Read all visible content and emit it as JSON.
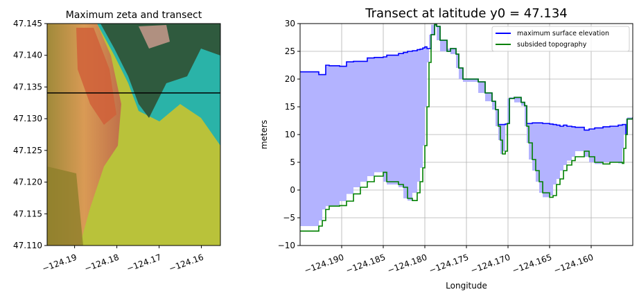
{
  "chart_data": [
    {
      "type": "heatmap",
      "title": "Maximum zeta and transect",
      "xlim": [
        -124.1965,
        -124.1555
      ],
      "ylim": [
        47.11,
        47.145
      ],
      "xticks": [
        "−124.19",
        "−124.18",
        "−124.17",
        "−124.16"
      ],
      "xtick_values": [
        -124.19,
        -124.18,
        -124.17,
        -124.16
      ],
      "yticks": [
        "47.110",
        "47.115",
        "47.120",
        "47.125",
        "47.130",
        "47.135",
        "47.140",
        "47.145"
      ],
      "ytick_values": [
        47.11,
        47.115,
        47.12,
        47.125,
        47.13,
        47.135,
        47.14,
        47.145
      ],
      "transect_latitude": 47.134,
      "colors": {
        "transect": "#000000",
        "ocean_inundation": "#e07a3a",
        "land": "#2f5a3e",
        "shallow": "#b9c93a",
        "teal": "#2ab3a8"
      }
    },
    {
      "type": "line",
      "title": "Transect at latitude y0 = 47.134",
      "xlabel": "Longitude",
      "ylabel": "meters",
      "xlim": [
        -124.195,
        -124.155
      ],
      "ylim": [
        -10,
        30
      ],
      "grid": true,
      "legend": "top-right",
      "xticks": [
        "−124.190",
        "−124.185",
        "−124.180",
        "−124.175",
        "−124.170",
        "−124.165",
        "−124.160"
      ],
      "xtick_values": [
        -124.19,
        -124.185,
        -124.18,
        -124.175,
        -124.17,
        -124.165,
        -124.16
      ],
      "yticks": [
        "−10",
        "−5",
        "0",
        "5",
        "10",
        "15",
        "20",
        "25",
        "30"
      ],
      "ytick_values": [
        -10,
        -5,
        0,
        5,
        10,
        15,
        20,
        25,
        30
      ],
      "fill_color": "#b3b3ff",
      "x": [
        -124.195,
        -124.19275,
        -124.19233,
        -124.19192,
        -124.1915,
        -124.19025,
        -124.18942,
        -124.18858,
        -124.18775,
        -124.18692,
        -124.18608,
        -124.185,
        -124.18458,
        -124.18317,
        -124.18258,
        -124.18208,
        -124.1815,
        -124.18092,
        -124.18058,
        -124.18025,
        -124.18,
        -124.17975,
        -124.1795,
        -124.17925,
        -124.17883,
        -124.17858,
        -124.17817,
        -124.17733,
        -124.17692,
        -124.17625,
        -124.17592,
        -124.17542,
        -124.17358,
        -124.17275,
        -124.17192,
        -124.1715,
        -124.17117,
        -124.17092,
        -124.17067,
        -124.17033,
        -124.17008,
        -124.16983,
        -124.16925,
        -124.16842,
        -124.168,
        -124.16775,
        -124.1675,
        -124.16708,
        -124.16667,
        -124.16625,
        -124.16583,
        -124.165,
        -124.16458,
        -124.16417,
        -124.16375,
        -124.16333,
        -124.16292,
        -124.16233,
        -124.16192,
        -124.16083,
        -124.16025,
        -124.15958,
        -124.15858,
        -124.15775,
        -124.15675,
        -124.15625,
        -124.15608,
        -124.15583,
        -124.15567,
        -124.155
      ],
      "series": [
        {
          "name": "maximum surface elevation",
          "color": "#0000ff",
          "values": [
            21.3,
            20.8,
            20.8,
            22.5,
            22.4,
            22.3,
            23.1,
            23.2,
            23.2,
            23.8,
            23.9,
            24.0,
            24.3,
            24.6,
            24.8,
            25.0,
            25.1,
            25.3,
            25.4,
            25.6,
            25.8,
            25.5,
            25.5,
            28.0,
            29.8,
            29.5,
            27.0,
            25.0,
            25.5,
            24.5,
            22.0,
            20.0,
            19.5,
            17.5,
            16.0,
            14.5,
            11.8,
            11.8,
            11.8,
            11.9,
            12.0,
            16.5,
            16.7,
            15.8,
            15.2,
            12.0,
            12.0,
            12.1,
            12.1,
            12.1,
            12.0,
            11.9,
            11.8,
            11.7,
            11.5,
            11.7,
            11.5,
            11.4,
            11.3,
            10.8,
            11.0,
            11.2,
            11.4,
            11.5,
            11.7,
            11.8,
            11.8,
            10.0,
            12.8,
            13.1
          ]
        },
        {
          "name": "subsided topography",
          "color": "#008000",
          "values": [
            -7.4,
            -6.5,
            -5.5,
            -3.5,
            -2.9,
            -2.8,
            -2.0,
            -0.7,
            0.5,
            1.5,
            2.5,
            3.2,
            1.5,
            1.0,
            0.5,
            -1.5,
            -1.9,
            -0.5,
            1.5,
            4.0,
            8.0,
            15.0,
            23.0,
            28.0,
            29.8,
            29.5,
            27.0,
            25.0,
            25.5,
            24.5,
            22.0,
            20.0,
            19.5,
            17.5,
            16.0,
            14.5,
            11.5,
            9.0,
            6.5,
            7.0,
            12.0,
            16.5,
            16.7,
            15.8,
            15.2,
            11.5,
            8.5,
            5.5,
            3.5,
            1.5,
            -0.5,
            -1.3,
            -1.0,
            1.0,
            2.0,
            3.5,
            4.5,
            5.3,
            6.0,
            7.0,
            6.0,
            5.0,
            4.7,
            5.0,
            5.0,
            4.8,
            7.5,
            10.0,
            12.8,
            13.1
          ]
        }
      ]
    }
  ]
}
